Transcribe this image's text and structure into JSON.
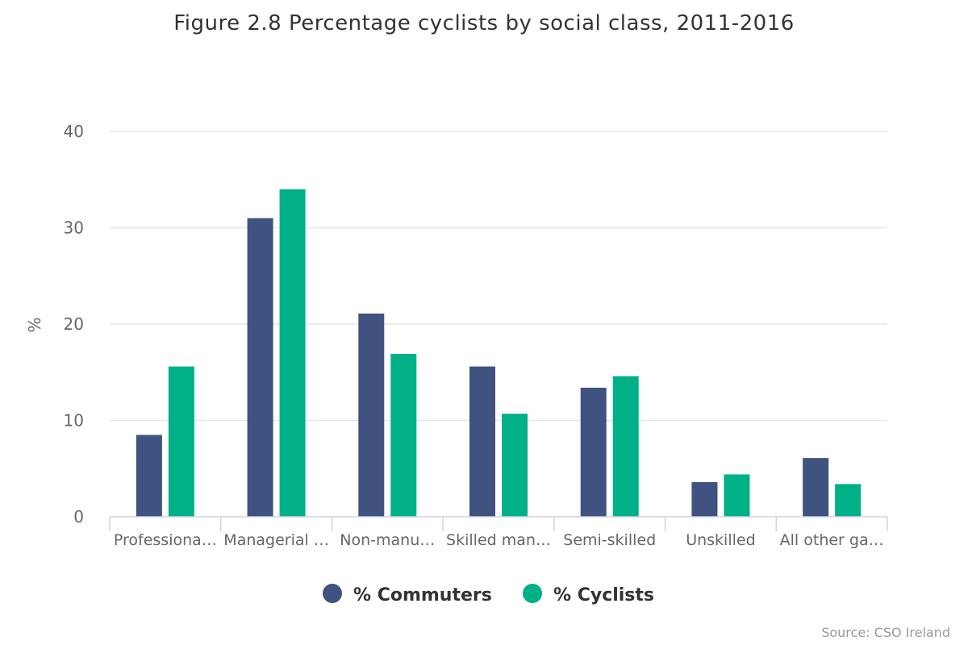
{
  "chart_data": {
    "type": "bar",
    "title": "Figure 2.8 Percentage cyclists by social class, 2011-2016",
    "ylabel": "%",
    "xlabel": "",
    "ylim": [
      0,
      40
    ],
    "yticks": [
      "0",
      "10",
      "20",
      "30",
      "40"
    ],
    "grid": true,
    "legend_position": "bottom-center",
    "categories": [
      "Professiona…",
      "Managerial …",
      "Non-manu…",
      "Skilled man…",
      "Semi-skilled",
      "Unskilled",
      "All other ga…"
    ],
    "series": [
      {
        "name": "% Commuters",
        "color": "#3f5280",
        "values": [
          8.5,
          31,
          21.1,
          15.6,
          13.4,
          3.6,
          6.1
        ]
      },
      {
        "name": "% Cyclists",
        "color": "#00b087",
        "values": [
          15.6,
          34,
          16.9,
          10.7,
          14.6,
          4.4,
          3.4
        ]
      }
    ],
    "credit": "Source: CSO Ireland"
  }
}
